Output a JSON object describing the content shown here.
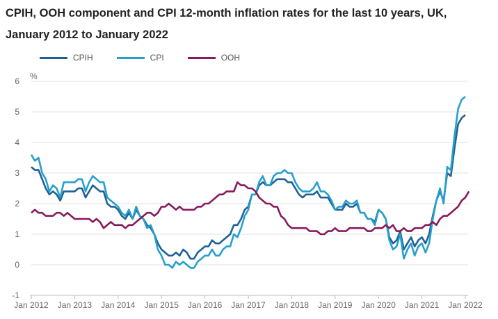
{
  "chart_data": {
    "type": "line",
    "title": "CPIH, OOH component and CPI 12-month inflation rates for the last 10 years, UK, January 2012 to January 2022",
    "ylabel": "%",
    "ylim": [
      -1,
      6
    ],
    "yticks": [
      "-1",
      "0",
      "1",
      "2",
      "3",
      "4",
      "5",
      "6"
    ],
    "xticks": [
      "Jan 2012",
      "Jan 2013",
      "Jan 2014",
      "Jan 2015",
      "Jan 2016",
      "Jan 2017",
      "Jan 2018",
      "Jan 2019",
      "Jan 2020",
      "Jan 2021",
      "Jan 2022"
    ],
    "x_start": "Jan 2012",
    "x_end": "Jan 2022",
    "grid": true,
    "legend": "top",
    "series": [
      {
        "name": "CPIH",
        "color": "#206095",
        "values": [
          3.2,
          3.1,
          3.1,
          2.8,
          2.5,
          2.3,
          2.4,
          2.3,
          2.1,
          2.4,
          2.4,
          2.4,
          2.4,
          2.5,
          2.5,
          2.2,
          2.4,
          2.6,
          2.5,
          2.4,
          2.4,
          2.0,
          1.9,
          1.9,
          1.8,
          1.6,
          1.5,
          1.7,
          1.5,
          1.8,
          1.6,
          1.5,
          1.3,
          1.2,
          1.0,
          0.7,
          0.5,
          0.4,
          0.3,
          0.3,
          0.4,
          0.3,
          0.5,
          0.4,
          0.2,
          0.2,
          0.4,
          0.5,
          0.6,
          0.6,
          0.8,
          0.7,
          0.7,
          0.8,
          0.9,
          1.0,
          1.3,
          1.3,
          1.5,
          1.8,
          1.9,
          2.3,
          2.3,
          2.6,
          2.7,
          2.6,
          2.6,
          2.7,
          2.8,
          2.8,
          2.8,
          2.7,
          2.7,
          2.5,
          2.3,
          2.2,
          2.3,
          2.3,
          2.3,
          2.4,
          2.2,
          2.2,
          2.2,
          2.0,
          1.8,
          1.8,
          1.8,
          2.0,
          1.9,
          1.9,
          2.0,
          1.7,
          1.7,
          1.5,
          1.5,
          1.4,
          1.8,
          1.7,
          1.5,
          0.9,
          0.7,
          0.8,
          1.1,
          0.5,
          0.7,
          0.9,
          0.6,
          0.8,
          0.9,
          0.7,
          1.0,
          1.6,
          2.1,
          2.4,
          2.1,
          3.0,
          2.9,
          3.8,
          4.6,
          4.8,
          4.9
        ]
      },
      {
        "name": "CPI",
        "color": "#27a0cc",
        "values": [
          3.6,
          3.4,
          3.5,
          3.0,
          2.8,
          2.4,
          2.6,
          2.5,
          2.2,
          2.7,
          2.7,
          2.7,
          2.7,
          2.8,
          2.8,
          2.4,
          2.7,
          2.9,
          2.8,
          2.7,
          2.7,
          2.2,
          2.1,
          2.0,
          1.9,
          1.7,
          1.6,
          1.8,
          1.5,
          1.9,
          1.6,
          1.5,
          1.2,
          1.3,
          1.0,
          0.5,
          0.3,
          0.0,
          0.0,
          -0.1,
          0.1,
          0.0,
          0.1,
          0.0,
          -0.1,
          -0.1,
          0.1,
          0.2,
          0.3,
          0.3,
          0.5,
          0.3,
          0.3,
          0.5,
          0.6,
          0.6,
          1.0,
          0.9,
          1.2,
          1.6,
          1.8,
          2.3,
          2.3,
          2.7,
          2.9,
          2.6,
          2.6,
          2.9,
          3.0,
          3.0,
          3.1,
          3.0,
          3.0,
          2.7,
          2.5,
          2.4,
          2.4,
          2.4,
          2.5,
          2.7,
          2.4,
          2.4,
          2.3,
          2.1,
          1.8,
          1.9,
          1.9,
          2.1,
          2.0,
          2.0,
          2.1,
          1.7,
          1.7,
          1.5,
          1.5,
          1.3,
          1.8,
          1.7,
          1.5,
          0.8,
          0.5,
          0.6,
          1.0,
          0.2,
          0.5,
          0.7,
          0.3,
          0.6,
          0.7,
          0.4,
          0.7,
          1.5,
          2.1,
          2.5,
          2.0,
          3.2,
          3.1,
          4.2,
          5.1,
          5.4,
          5.5
        ]
      },
      {
        "name": "OOH",
        "color": "#871a5b",
        "values": [
          1.7,
          1.8,
          1.7,
          1.7,
          1.6,
          1.6,
          1.6,
          1.7,
          1.7,
          1.6,
          1.7,
          1.6,
          1.5,
          1.5,
          1.5,
          1.5,
          1.5,
          1.4,
          1.5,
          1.4,
          1.2,
          1.3,
          1.4,
          1.3,
          1.3,
          1.3,
          1.2,
          1.3,
          1.3,
          1.4,
          1.5,
          1.6,
          1.7,
          1.7,
          1.6,
          1.7,
          1.9,
          1.9,
          2.0,
          1.9,
          1.8,
          1.9,
          1.8,
          1.8,
          1.8,
          1.8,
          1.9,
          1.9,
          2.0,
          2.0,
          2.1,
          2.2,
          2.3,
          2.3,
          2.4,
          2.4,
          2.4,
          2.7,
          2.6,
          2.6,
          2.5,
          2.5,
          2.4,
          2.2,
          2.1,
          2.0,
          2.0,
          1.9,
          1.9,
          1.6,
          1.5,
          1.3,
          1.2,
          1.2,
          1.2,
          1.2,
          1.2,
          1.1,
          1.1,
          1.1,
          1.0,
          1.0,
          1.1,
          1.1,
          1.2,
          1.1,
          1.1,
          1.1,
          1.2,
          1.2,
          1.2,
          1.2,
          1.2,
          1.1,
          1.1,
          1.2,
          1.2,
          1.2,
          1.3,
          1.2,
          1.3,
          1.1,
          1.1,
          1.2,
          1.1,
          1.1,
          1.2,
          1.2,
          1.2,
          1.3,
          1.3,
          1.4,
          1.3,
          1.5,
          1.6,
          1.6,
          1.7,
          1.8,
          1.9,
          2.1,
          2.2,
          2.4
        ]
      }
    ]
  }
}
